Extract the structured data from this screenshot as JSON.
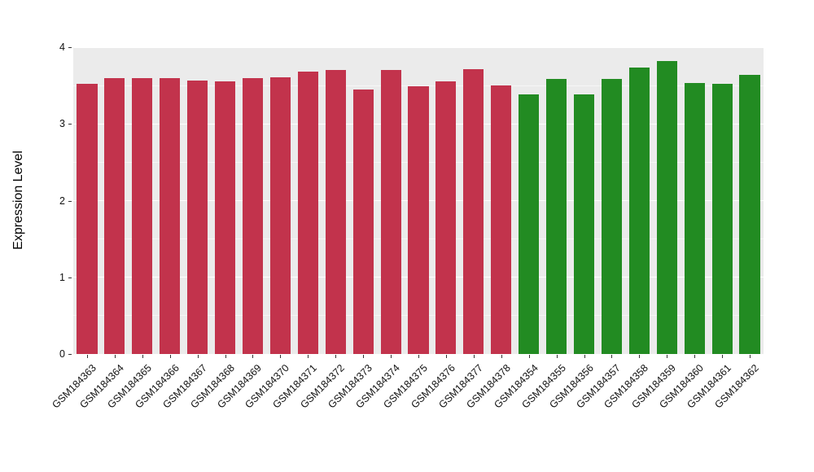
{
  "figure": {
    "background": "#FFFFFF",
    "panel_background": "#EBEBEB",
    "grid_color": "#FFFFFF",
    "tick_color": "#333333"
  },
  "chart_data": {
    "type": "bar",
    "title": "",
    "xlabel": "",
    "ylabel": "Expression Level",
    "ylim": [
      0,
      4
    ],
    "yticks": [
      0,
      1,
      2,
      3,
      4
    ],
    "grid": true,
    "legend": "none",
    "group_colors": {
      "red": "#C2334C",
      "green": "#228B22"
    },
    "bars": [
      {
        "label": "GSM184363",
        "value": 3.52,
        "group": "red"
      },
      {
        "label": "GSM184364",
        "value": 3.6,
        "group": "red"
      },
      {
        "label": "GSM184365",
        "value": 3.6,
        "group": "red"
      },
      {
        "label": "GSM184366",
        "value": 3.6,
        "group": "red"
      },
      {
        "label": "GSM184367",
        "value": 3.56,
        "group": "red"
      },
      {
        "label": "GSM184368",
        "value": 3.55,
        "group": "red"
      },
      {
        "label": "GSM184369",
        "value": 3.6,
        "group": "red"
      },
      {
        "label": "GSM184370",
        "value": 3.61,
        "group": "red"
      },
      {
        "label": "GSM184371",
        "value": 3.68,
        "group": "red"
      },
      {
        "label": "GSM184372",
        "value": 3.7,
        "group": "red"
      },
      {
        "label": "GSM184373",
        "value": 3.45,
        "group": "red"
      },
      {
        "label": "GSM184374",
        "value": 3.7,
        "group": "red"
      },
      {
        "label": "GSM184375",
        "value": 3.49,
        "group": "red"
      },
      {
        "label": "GSM184376",
        "value": 3.55,
        "group": "red"
      },
      {
        "label": "GSM184377",
        "value": 3.71,
        "group": "red"
      },
      {
        "label": "GSM184378",
        "value": 3.5,
        "group": "red"
      },
      {
        "label": "GSM184354",
        "value": 3.39,
        "group": "green"
      },
      {
        "label": "GSM184355",
        "value": 3.59,
        "group": "green"
      },
      {
        "label": "GSM184356",
        "value": 3.39,
        "group": "green"
      },
      {
        "label": "GSM184357",
        "value": 3.59,
        "group": "green"
      },
      {
        "label": "GSM184358",
        "value": 3.73,
        "group": "green"
      },
      {
        "label": "GSM184359",
        "value": 3.82,
        "group": "green"
      },
      {
        "label": "GSM184360",
        "value": 3.53,
        "group": "green"
      },
      {
        "label": "GSM184361",
        "value": 3.52,
        "group": "green"
      },
      {
        "label": "GSM184362",
        "value": 3.64,
        "group": "green"
      }
    ]
  }
}
